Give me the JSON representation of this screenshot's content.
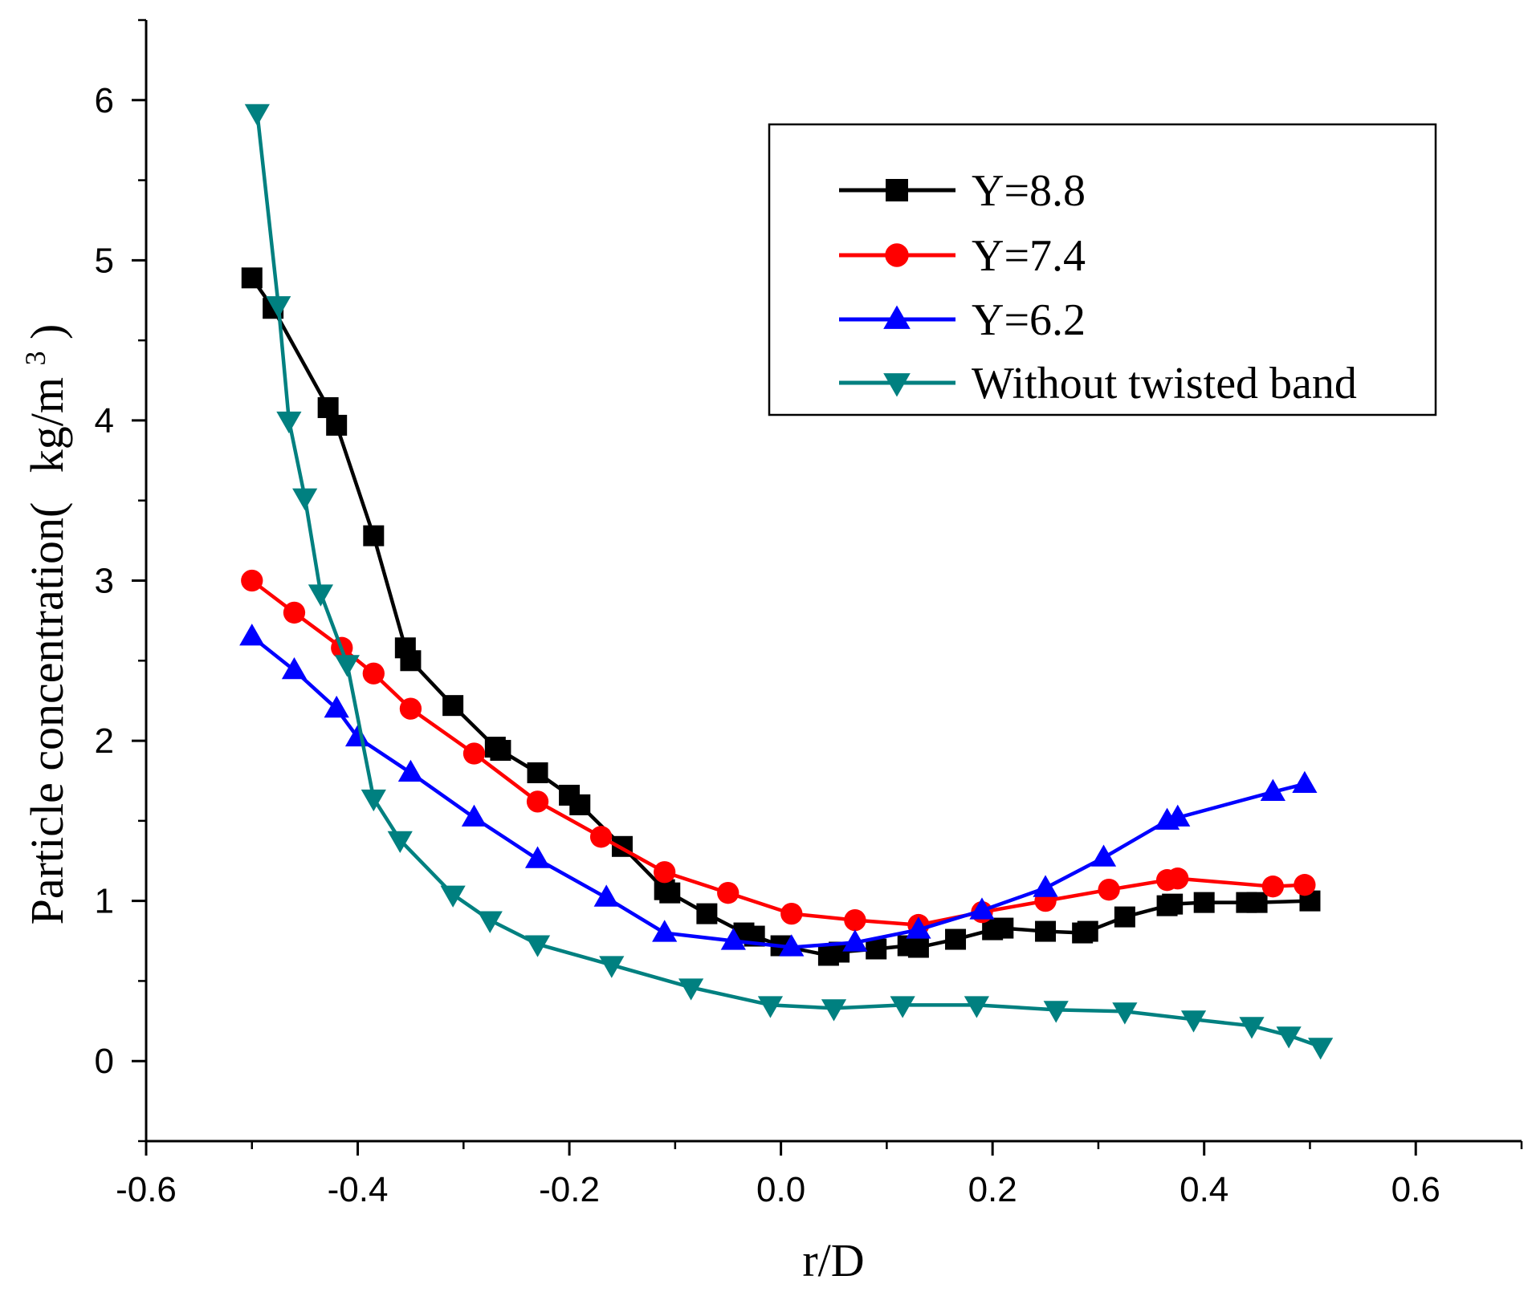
{
  "chart_data": {
    "type": "line",
    "title": "",
    "xlabel": "r/D",
    "ylabel": {
      "main": "Particle concentration(",
      "unit": "kg/m",
      "sup": "3",
      "close": ")"
    },
    "xlim": [
      -0.6,
      0.7
    ],
    "ylim": [
      -0.5,
      6.5
    ],
    "xticks": [
      -0.6,
      -0.4,
      -0.2,
      0.0,
      0.2,
      0.4,
      0.6
    ],
    "xtick_labels": [
      "-0.6",
      "-0.4",
      "-0.2",
      "0.0",
      "0.2",
      "0.4",
      "0.6"
    ],
    "yticks": [
      0,
      1,
      2,
      3,
      4,
      5,
      6
    ],
    "ytick_labels": [
      "0",
      "1",
      "2",
      "3",
      "4",
      "5",
      "6"
    ],
    "grid": false,
    "legend_position": "top-right",
    "series": [
      {
        "name": "Y=8.8",
        "color": "#000000",
        "marker": "square",
        "x": [
          -0.5,
          -0.48,
          -0.428,
          -0.42,
          -0.385,
          -0.355,
          -0.35,
          -0.31,
          -0.27,
          -0.265,
          -0.23,
          -0.2,
          -0.19,
          -0.15,
          -0.11,
          -0.105,
          -0.07,
          -0.035,
          -0.025,
          0.0,
          0.045,
          0.055,
          0.09,
          0.12,
          0.13,
          0.165,
          0.2,
          0.21,
          0.25,
          0.285,
          0.29,
          0.325,
          0.365,
          0.37,
          0.4,
          0.44,
          0.45,
          0.5
        ],
        "y": [
          4.89,
          4.7,
          4.08,
          3.97,
          3.28,
          2.58,
          2.5,
          2.22,
          1.96,
          1.94,
          1.8,
          1.66,
          1.6,
          1.34,
          1.07,
          1.05,
          0.92,
          0.8,
          0.78,
          0.72,
          0.66,
          0.68,
          0.7,
          0.72,
          0.71,
          0.76,
          0.82,
          0.83,
          0.81,
          0.8,
          0.81,
          0.9,
          0.97,
          0.98,
          0.99,
          0.99,
          0.99,
          1.0
        ]
      },
      {
        "name": "Y=7.4",
        "color": "#ff0000",
        "marker": "circle",
        "x": [
          -0.5,
          -0.46,
          -0.415,
          -0.385,
          -0.35,
          -0.29,
          -0.23,
          -0.17,
          -0.11,
          -0.05,
          0.01,
          0.07,
          0.13,
          0.19,
          0.25,
          0.31,
          0.365,
          0.375,
          0.465,
          0.495
        ],
        "y": [
          3.0,
          2.8,
          2.58,
          2.42,
          2.2,
          1.92,
          1.62,
          1.4,
          1.18,
          1.05,
          0.92,
          0.88,
          0.85,
          0.93,
          1.0,
          1.07,
          1.13,
          1.14,
          1.09,
          1.1
        ]
      },
      {
        "name": "Y=6.2",
        "color": "#0000ff",
        "marker": "triangle-up",
        "x": [
          -0.5,
          -0.46,
          -0.42,
          -0.4,
          -0.35,
          -0.29,
          -0.23,
          -0.165,
          -0.11,
          -0.045,
          0.01,
          0.07,
          0.13,
          0.19,
          0.25,
          0.305,
          0.365,
          0.375,
          0.465,
          0.495
        ],
        "y": [
          2.65,
          2.44,
          2.2,
          2.02,
          1.8,
          1.52,
          1.26,
          1.02,
          0.8,
          0.75,
          0.71,
          0.74,
          0.82,
          0.94,
          1.08,
          1.27,
          1.5,
          1.52,
          1.68,
          1.73
        ]
      },
      {
        "name": "Without twisted band",
        "color": "#008080",
        "marker": "triangle-down",
        "x": [
          -0.495,
          -0.475,
          -0.465,
          -0.45,
          -0.435,
          -0.41,
          -0.385,
          -0.36,
          -0.31,
          -0.275,
          -0.23,
          -0.16,
          -0.085,
          -0.01,
          0.05,
          0.115,
          0.185,
          0.26,
          0.325,
          0.39,
          0.445,
          0.48,
          0.51
        ],
        "y": [
          5.92,
          4.72,
          4.0,
          3.52,
          2.92,
          2.48,
          1.64,
          1.38,
          1.04,
          0.88,
          0.73,
          0.6,
          0.46,
          0.35,
          0.33,
          0.35,
          0.35,
          0.32,
          0.31,
          0.26,
          0.22,
          0.16,
          0.09
        ]
      }
    ]
  }
}
